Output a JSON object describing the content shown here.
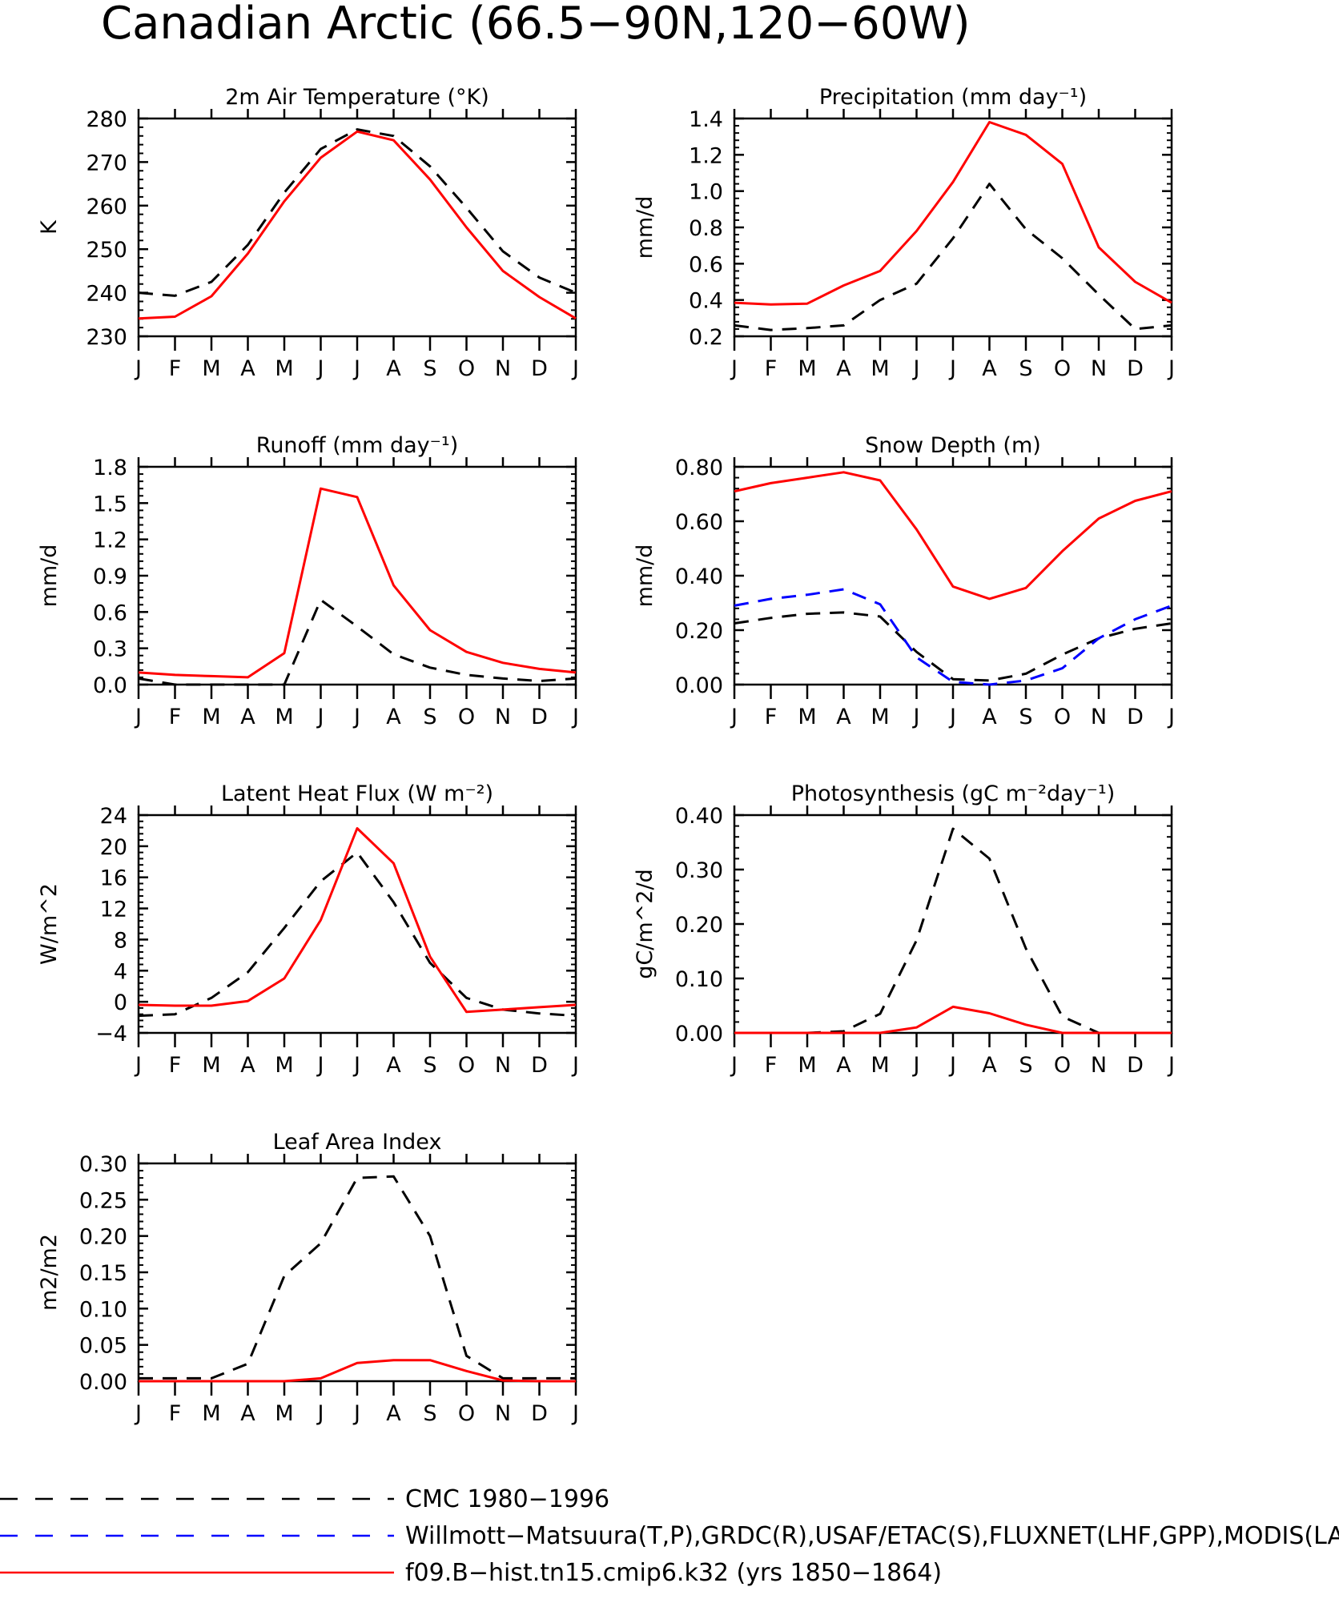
{
  "figure": {
    "title": "Canadian Arctic (66.5−90N,120−60W)"
  },
  "months": [
    "J",
    "F",
    "M",
    "A",
    "M",
    "J",
    "J",
    "A",
    "S",
    "O",
    "N",
    "D",
    "J"
  ],
  "legend": [
    {
      "label": "CMC 1980−1996",
      "color": "#000000",
      "dash": "long"
    },
    {
      "label": "Willmott−Matsuura(T,P),GRDC(R),USAF/ETAC(S),FLUXNET(LHF,GPP),MODIS(LAI)",
      "color": "#0000ff",
      "dash": "long"
    },
    {
      "label": "f09.B−hist.tn15.cmip6.k32 (yrs 1850−1864)",
      "color": "#ff0000",
      "dash": "solid"
    }
  ],
  "colors": {
    "cmc": "#000000",
    "obs": "#0000ff",
    "model": "#ff0000"
  },
  "chart_data": [
    {
      "type": "line",
      "title": "2m Air Temperature (°K)",
      "ylabel": "K",
      "ylim": [
        230,
        280
      ],
      "yticks": [
        230,
        240,
        250,
        260,
        270,
        280
      ],
      "yticklabels": [
        "230",
        "240",
        "250",
        "260",
        "270",
        "280"
      ],
      "series": [
        {
          "color": "#000000",
          "dash": "dashed",
          "values": [
            240.0,
            239.3,
            242.5,
            251.0,
            263.0,
            273.0,
            277.5,
            276.0,
            269.0,
            259.5,
            249.5,
            243.5,
            240.0
          ]
        },
        {
          "color": "#ff0000",
          "dash": "solid",
          "values": [
            234.1,
            234.5,
            239.2,
            249.0,
            261.0,
            271.0,
            277.0,
            275.0,
            266.0,
            255.0,
            245.0,
            239.0,
            234.1
          ]
        }
      ]
    },
    {
      "type": "line",
      "title": "Precipitation (mm day⁻¹)",
      "ylabel": "mm/d",
      "ylim": [
        0.2,
        1.4
      ],
      "yticks": [
        0.2,
        0.4,
        0.6,
        0.8,
        1.0,
        1.2,
        1.4
      ],
      "yticklabels": [
        "0.2",
        "0.4",
        "0.6",
        "0.8",
        "1.0",
        "1.2",
        "1.4"
      ],
      "series": [
        {
          "color": "#000000",
          "dash": "dashed",
          "values": [
            0.26,
            0.235,
            0.245,
            0.26,
            0.4,
            0.49,
            0.74,
            1.04,
            0.79,
            0.63,
            0.43,
            0.24,
            0.26
          ]
        },
        {
          "color": "#ff0000",
          "dash": "solid",
          "values": [
            0.385,
            0.375,
            0.38,
            0.48,
            0.56,
            0.78,
            1.05,
            1.38,
            1.31,
            1.15,
            0.69,
            0.5,
            0.385
          ]
        }
      ]
    },
    {
      "type": "line",
      "title": "Runoff (mm day⁻¹)",
      "ylabel": "mm/d",
      "ylim": [
        0.0,
        1.8
      ],
      "yticks": [
        0.0,
        0.3,
        0.6,
        0.9,
        1.2,
        1.5,
        1.8
      ],
      "yticklabels": [
        "0.0",
        "0.3",
        "0.6",
        "0.9",
        "1.2",
        "1.5",
        "1.8"
      ],
      "series": [
        {
          "color": "#000000",
          "dash": "dashed",
          "values": [
            0.05,
            0.0,
            0.0,
            0.0,
            0.0,
            0.7,
            0.48,
            0.25,
            0.14,
            0.08,
            0.05,
            0.03,
            0.05
          ]
        },
        {
          "color": "#ff0000",
          "dash": "solid",
          "values": [
            0.1,
            0.08,
            0.07,
            0.06,
            0.26,
            1.62,
            1.55,
            0.82,
            0.45,
            0.27,
            0.18,
            0.13,
            0.1
          ]
        }
      ]
    },
    {
      "type": "line",
      "title": "Snow Depth (m)",
      "ylabel": "mm/d",
      "ylim": [
        0.0,
        0.8
      ],
      "yticks": [
        0.0,
        0.2,
        0.4,
        0.6,
        0.8
      ],
      "yticklabels": [
        "0.00",
        "0.20",
        "0.40",
        "0.60",
        "0.80"
      ],
      "series": [
        {
          "color": "#000000",
          "dash": "dashed",
          "values": [
            0.225,
            0.245,
            0.26,
            0.265,
            0.25,
            0.12,
            0.02,
            0.015,
            0.04,
            0.11,
            0.17,
            0.205,
            0.225
          ]
        },
        {
          "color": "#0000ff",
          "dash": "dashed",
          "values": [
            0.29,
            0.315,
            0.33,
            0.35,
            0.295,
            0.1,
            0.01,
            0.0,
            0.015,
            0.06,
            0.17,
            0.24,
            0.29
          ]
        },
        {
          "color": "#ff0000",
          "dash": "solid",
          "values": [
            0.71,
            0.74,
            0.76,
            0.78,
            0.75,
            0.57,
            0.36,
            0.315,
            0.355,
            0.49,
            0.61,
            0.675,
            0.71
          ]
        }
      ]
    },
    {
      "type": "line",
      "title": "Latent Heat Flux (W m⁻²)",
      "ylabel": "W/m^2",
      "ylim": [
        -4,
        24
      ],
      "yticks": [
        -4,
        0,
        4,
        8,
        12,
        16,
        20,
        24
      ],
      "yticklabels": [
        "−4",
        "0",
        "4",
        "8",
        "12",
        "16",
        "20",
        "24"
      ],
      "series": [
        {
          "color": "#000000",
          "dash": "dashed",
          "values": [
            -1.8,
            -1.6,
            0.5,
            3.8,
            9.5,
            15.5,
            19.2,
            12.8,
            5.0,
            0.5,
            -1.0,
            -1.5,
            -1.8
          ]
        },
        {
          "color": "#ff0000",
          "dash": "solid",
          "values": [
            -0.4,
            -0.5,
            -0.5,
            0.1,
            3.0,
            10.5,
            22.3,
            17.8,
            5.8,
            -1.3,
            -1.0,
            -0.7,
            -0.4
          ]
        }
      ]
    },
    {
      "type": "line",
      "title": "Photosynthesis (gC m⁻²day⁻¹)",
      "ylabel": "gC/m^2/d",
      "ylim": [
        0.0,
        0.4
      ],
      "yticks": [
        0.0,
        0.1,
        0.2,
        0.3,
        0.4
      ],
      "yticklabels": [
        "0.00",
        "0.10",
        "0.20",
        "0.30",
        "0.40"
      ],
      "series": [
        {
          "color": "#000000",
          "dash": "dashed",
          "values": [
            0.0,
            0.0,
            0.0,
            0.003,
            0.035,
            0.17,
            0.375,
            0.32,
            0.155,
            0.03,
            0.0,
            0.0,
            0.0
          ]
        },
        {
          "color": "#ff0000",
          "dash": "solid",
          "values": [
            0.0,
            0.0,
            0.0,
            0.0,
            0.0,
            0.01,
            0.048,
            0.036,
            0.015,
            0.0,
            0.0,
            0.0,
            0.0
          ]
        }
      ]
    },
    {
      "type": "line",
      "title": "Leaf Area Index",
      "ylabel": "m2/m2",
      "ylim": [
        0.0,
        0.3
      ],
      "yticks": [
        0.0,
        0.05,
        0.1,
        0.15,
        0.2,
        0.25,
        0.3
      ],
      "yticklabels": [
        "0.00",
        "0.05",
        "0.10",
        "0.15",
        "0.20",
        "0.25",
        "0.30"
      ],
      "series": [
        {
          "color": "#000000",
          "dash": "dashed",
          "values": [
            0.004,
            0.004,
            0.004,
            0.024,
            0.145,
            0.19,
            0.28,
            0.282,
            0.2,
            0.035,
            0.004,
            0.004,
            0.004
          ]
        },
        {
          "color": "#ff0000",
          "dash": "solid",
          "values": [
            0.0,
            0.0,
            0.0,
            0.0,
            0.0,
            0.004,
            0.025,
            0.029,
            0.029,
            0.014,
            0.001,
            0.0,
            0.0
          ]
        }
      ]
    }
  ]
}
